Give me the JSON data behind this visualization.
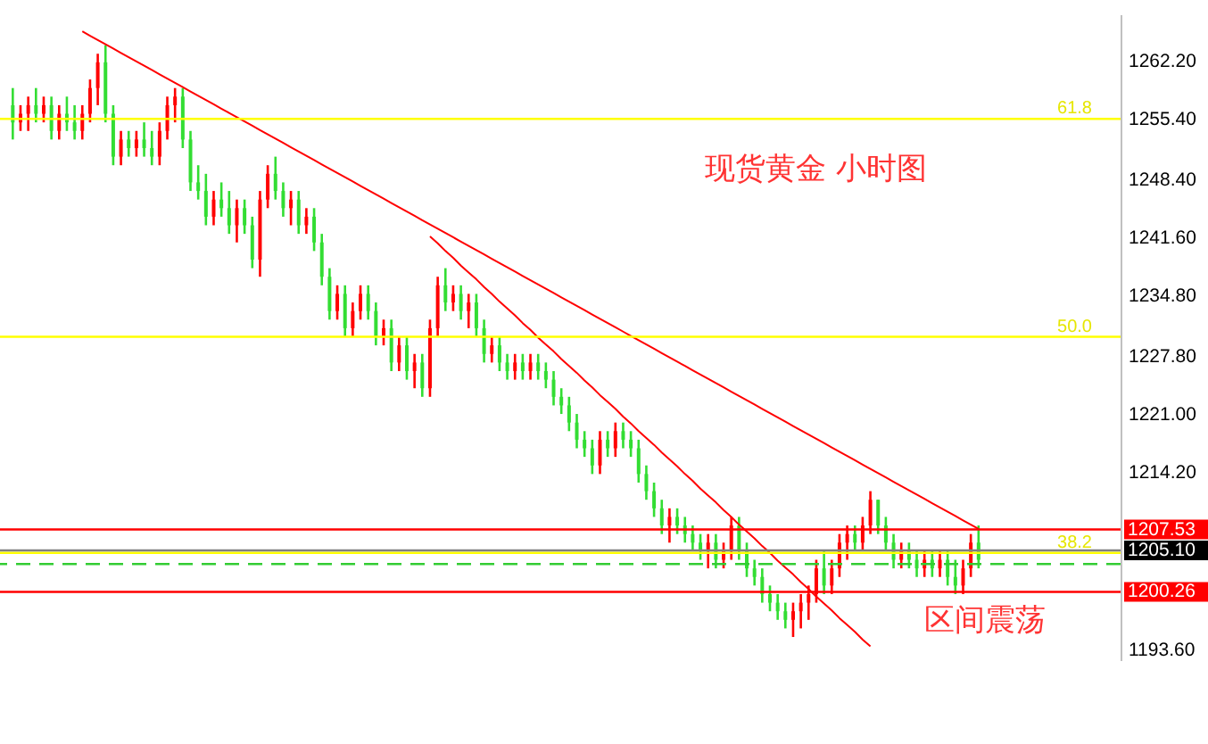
{
  "chart_data": {
    "type": "candlestick",
    "tick_labels": "y",
    "grid": false,
    "annotations": [
      "现货黄金 小时图",
      "区间震荡",
      {
        "text": "61.8",
        "y": 1255.4
      },
      {
        "text": "50.0",
        "y": 1230
      },
      {
        "text": "38.2",
        "y": 1204.8
      }
    ],
    "ylim": [
      1192.3,
      1267.6
    ],
    "yticks": [
      {
        "value": 1262.2,
        "label": "1262.20"
      },
      {
        "value": 1255.4,
        "label": "1255.40"
      },
      {
        "value": 1248.4,
        "label": "1248.40"
      },
      {
        "value": 1241.6,
        "label": "1241.60"
      },
      {
        "value": 1234.8,
        "label": "1234.80"
      },
      {
        "value": 1227.8,
        "label": "1227.80"
      },
      {
        "value": 1221,
        "label": "1221.00"
      },
      {
        "value": 1214.2,
        "label": "1214.20"
      },
      {
        "value": 1193.6,
        "label": "1193.60"
      }
    ],
    "categories": [
      null,
      null,
      null,
      null,
      null,
      null,
      null,
      null,
      null,
      null,
      null,
      null,
      null,
      null,
      null,
      null,
      null,
      null,
      null,
      null,
      null,
      null,
      null,
      null,
      null,
      null,
      null,
      null,
      null,
      null,
      null,
      null,
      null,
      null,
      null,
      null,
      null,
      null,
      null,
      null,
      null,
      null,
      null,
      null,
      null,
      null,
      null,
      null,
      null,
      null,
      null,
      null,
      null,
      null,
      null,
      null,
      null,
      null,
      null,
      null,
      null,
      null,
      null,
      null,
      null,
      null,
      null,
      null,
      null,
      null,
      null,
      null,
      null,
      null,
      null,
      null,
      null,
      null,
      null,
      null,
      null,
      null,
      null,
      null,
      null,
      null,
      null,
      null,
      null,
      null,
      null,
      null,
      null,
      null,
      null,
      null,
      null,
      null,
      null,
      null,
      null,
      null,
      null,
      null,
      null,
      null,
      null,
      null,
      null,
      null,
      null,
      null,
      null,
      null,
      null,
      null,
      null,
      null,
      null,
      null,
      null,
      null,
      null,
      null,
      null,
      null
    ],
    "ohlc": [
      [
        1257,
        1259,
        1253,
        1255
      ],
      [
        1255,
        1257,
        1254,
        1256
      ],
      [
        1256,
        1258,
        1254,
        1257
      ],
      [
        1257,
        1259,
        1255,
        1256
      ],
      [
        1256,
        1258,
        1255,
        1257
      ],
      [
        1257,
        1258,
        1253,
        1254
      ],
      [
        1254,
        1257,
        1253,
        1256
      ],
      [
        1256,
        1258,
        1254,
        1255
      ],
      [
        1255,
        1257,
        1253,
        1254
      ],
      [
        1254,
        1257,
        1253,
        1256
      ],
      [
        1256,
        1260,
        1255,
        1259
      ],
      [
        1259,
        1263,
        1257,
        1262
      ],
      [
        1262,
        1264,
        1255,
        1256
      ],
      [
        1256,
        1257,
        1250,
        1251
      ],
      [
        1251,
        1254,
        1250,
        1253
      ],
      [
        1253,
        1254,
        1251,
        1252
      ],
      [
        1252,
        1254,
        1251,
        1253
      ],
      [
        1253,
        1255,
        1251,
        1252
      ],
      [
        1252,
        1254,
        1250,
        1251
      ],
      [
        1251,
        1255,
        1250,
        1254
      ],
      [
        1254,
        1258,
        1253,
        1257
      ],
      [
        1257,
        1259,
        1255,
        1258
      ],
      [
        1258,
        1259,
        1252,
        1253
      ],
      [
        1253,
        1254,
        1247,
        1248
      ],
      [
        1248,
        1250,
        1246,
        1247
      ],
      [
        1247,
        1249,
        1243,
        1244
      ],
      [
        1244,
        1247,
        1243,
        1246
      ],
      [
        1246,
        1248,
        1244,
        1245
      ],
      [
        1245,
        1247,
        1242,
        1243
      ],
      [
        1243,
        1246,
        1241,
        1245
      ],
      [
        1245,
        1246,
        1242,
        1243
      ],
      [
        1243,
        1244,
        1238,
        1239
      ],
      [
        1239,
        1247,
        1237,
        1246
      ],
      [
        1246,
        1250,
        1245,
        1249
      ],
      [
        1249,
        1251,
        1246,
        1247
      ],
      [
        1247,
        1248,
        1244,
        1245
      ],
      [
        1245,
        1247,
        1243,
        1246
      ],
      [
        1246,
        1247,
        1242,
        1243
      ],
      [
        1243,
        1245,
        1242,
        1244
      ],
      [
        1244,
        1245,
        1240,
        1241
      ],
      [
        1241,
        1242,
        1236,
        1237
      ],
      [
        1237,
        1238,
        1232,
        1233
      ],
      [
        1233,
        1236,
        1232,
        1235
      ],
      [
        1235,
        1236,
        1230,
        1231
      ],
      [
        1231,
        1234,
        1230,
        1233
      ],
      [
        1233,
        1236,
        1232,
        1235
      ],
      [
        1235,
        1236,
        1232,
        1233
      ],
      [
        1233,
        1234,
        1229,
        1230
      ],
      [
        1230,
        1232,
        1229,
        1231
      ],
      [
        1231,
        1232,
        1226,
        1227
      ],
      [
        1227,
        1230,
        1226,
        1229
      ],
      [
        1229,
        1230,
        1225,
        1226
      ],
      [
        1226,
        1228,
        1224,
        1227
      ],
      [
        1227,
        1228,
        1223,
        1224
      ],
      [
        1224,
        1232,
        1223,
        1231
      ],
      [
        1231,
        1237,
        1230,
        1236
      ],
      [
        1236,
        1238,
        1233,
        1234
      ],
      [
        1234,
        1236,
        1233,
        1235
      ],
      [
        1235,
        1236,
        1232,
        1233
      ],
      [
        1233,
        1235,
        1231,
        1234
      ],
      [
        1234,
        1235,
        1230,
        1231
      ],
      [
        1231,
        1232,
        1227,
        1228
      ],
      [
        1228,
        1230,
        1227,
        1229
      ],
      [
        1229,
        1230,
        1226,
        1227
      ],
      [
        1227,
        1228,
        1225,
        1226
      ],
      [
        1226,
        1228,
        1225,
        1227
      ],
      [
        1227,
        1228,
        1225,
        1226
      ],
      [
        1226,
        1228,
        1225,
        1227
      ],
      [
        1227,
        1228,
        1225,
        1226
      ],
      [
        1226,
        1227,
        1224,
        1225
      ],
      [
        1225,
        1226,
        1222,
        1223
      ],
      [
        1223,
        1224,
        1221,
        1222
      ],
      [
        1222,
        1223,
        1219,
        1220
      ],
      [
        1220,
        1221,
        1217,
        1218
      ],
      [
        1218,
        1219,
        1216,
        1217
      ],
      [
        1217,
        1218,
        1214,
        1215
      ],
      [
        1215,
        1219,
        1214,
        1218
      ],
      [
        1218,
        1219,
        1216,
        1217
      ],
      [
        1217,
        1220,
        1216,
        1219
      ],
      [
        1219,
        1220,
        1217,
        1218
      ],
      [
        1218,
        1219,
        1216,
        1217
      ],
      [
        1217,
        1218,
        1213,
        1214
      ],
      [
        1214,
        1215,
        1211,
        1212
      ],
      [
        1212,
        1213,
        1209,
        1210
      ],
      [
        1210,
        1211,
        1207,
        1208
      ],
      [
        1208,
        1210,
        1206,
        1209
      ],
      [
        1209,
        1210,
        1207,
        1208
      ],
      [
        1208,
        1209,
        1206,
        1207
      ],
      [
        1207,
        1208,
        1205,
        1206
      ],
      [
        1206,
        1207,
        1204,
        1205
      ],
      [
        1205,
        1207,
        1203,
        1206
      ],
      [
        1206,
        1207,
        1203,
        1204
      ],
      [
        1204,
        1206,
        1203,
        1205
      ],
      [
        1205,
        1209,
        1204,
        1208
      ],
      [
        1208,
        1209,
        1204,
        1205
      ],
      [
        1205,
        1206,
        1202,
        1203
      ],
      [
        1203,
        1204,
        1201,
        1202
      ],
      [
        1202,
        1203,
        1199,
        1200
      ],
      [
        1200,
        1201,
        1198,
        1199
      ],
      [
        1199,
        1200,
        1197,
        1198
      ],
      [
        1198,
        1199,
        1196,
        1197
      ],
      [
        1197,
        1199,
        1195,
        1198
      ],
      [
        1198,
        1200,
        1196,
        1199
      ],
      [
        1199,
        1201,
        1197,
        1200
      ],
      [
        1200,
        1204,
        1199,
        1203
      ],
      [
        1203,
        1205,
        1200,
        1201
      ],
      [
        1201,
        1204,
        1200,
        1203
      ],
      [
        1203,
        1207,
        1202,
        1206
      ],
      [
        1206,
        1208,
        1204,
        1207
      ],
      [
        1207,
        1208,
        1205,
        1206
      ],
      [
        1206,
        1209,
        1205,
        1208
      ],
      [
        1208,
        1212,
        1207,
        1211
      ],
      [
        1211,
        1211,
        1207,
        1208
      ],
      [
        1208,
        1209,
        1205,
        1206
      ],
      [
        1206,
        1207,
        1203,
        1204
      ],
      [
        1204,
        1206,
        1203,
        1205
      ],
      [
        1205,
        1206,
        1203,
        1204
      ],
      [
        1204,
        1205,
        1202,
        1203
      ],
      [
        1203,
        1205,
        1202,
        1204
      ],
      [
        1204,
        1205,
        1202,
        1203
      ],
      [
        1203,
        1205,
        1202,
        1204
      ],
      [
        1204,
        1205,
        1201,
        1202
      ],
      [
        1202,
        1204,
        1200,
        1201
      ],
      [
        1201,
        1204,
        1200,
        1203
      ],
      [
        1203,
        1207,
        1202,
        1206
      ],
      [
        1206,
        1208,
        1203,
        1204
      ]
    ],
    "series": [
      {
        "type": "line",
        "color": "#ff0000",
        "values": [
          null,
          null,
          null,
          null,
          null,
          null,
          null,
          null,
          null,
          1265.6,
          1265.1,
          1264.6,
          1264.1,
          1263.6,
          1263.1,
          1262.6,
          1262.1,
          1261.6,
          1261.1,
          1260.6,
          1260.1,
          1259.6,
          1259.1,
          1258.6,
          1258.1,
          1257.6,
          1257.1,
          1256.6,
          1256.1,
          1255.6,
          1255.1,
          1254.6,
          1254.1,
          1253.6,
          1253.1,
          1252.6,
          1252.1,
          1251.6,
          1251.1,
          1250.6,
          1250.1,
          1249.6,
          1249.1,
          1248.6,
          1248.1,
          1247.6,
          1247.1,
          1246.6,
          1246.1,
          1245.6,
          1245.1,
          1244.6,
          1244.1,
          1243.6,
          1243.1,
          1242.6,
          1242.1,
          1241.6,
          1241.1,
          1240.6,
          1240.1,
          1239.6,
          1239.1,
          1238.6,
          1238.1,
          1237.6,
          1237.1,
          1236.6,
          1236.1,
          1235.6,
          1235.1,
          1234.6,
          1234.1,
          1233.6,
          1233.1,
          1232.6,
          1232.1,
          1231.6,
          1231.1,
          1230.6,
          1230.1,
          1229.6,
          1229.1,
          1228.6,
          1228.1,
          1227.6,
          1227.1,
          1226.6,
          1226.1,
          1225.6,
          1225.1,
          1224.6,
          1224.1,
          1223.6,
          1223.1,
          1222.6,
          1222.1,
          1221.6,
          1221.1,
          1220.6,
          1220.1,
          1219.6,
          1219.1,
          1218.6,
          1218.1,
          1217.6,
          1217.1,
          1216.6,
          1216.1,
          1215.6,
          1215.1,
          1214.6,
          1214.1,
          1213.6,
          1213.1,
          1212.6,
          1212.1,
          1211.6,
          1211.1,
          1210.6,
          1210.1,
          1209.6,
          1209.1,
          1208.6,
          1208.1,
          1207.6
        ]
      },
      {
        "type": "line",
        "color": "#ff0000",
        "values": [
          null,
          null,
          null,
          null,
          null,
          null,
          null,
          null,
          null,
          null,
          null,
          null,
          null,
          null,
          null,
          null,
          null,
          null,
          null,
          null,
          null,
          null,
          null,
          null,
          null,
          null,
          null,
          null,
          null,
          null,
          null,
          null,
          null,
          null,
          null,
          null,
          null,
          null,
          null,
          null,
          null,
          null,
          null,
          null,
          null,
          null,
          null,
          null,
          null,
          null,
          null,
          null,
          null,
          null,
          1241.7,
          1240.9,
          1240.0,
          1239.2,
          1238.3,
          1237.5,
          1236.7,
          1235.8,
          1235.0,
          1234.1,
          1233.3,
          1232.5,
          1231.6,
          1230.8,
          1229.9,
          1229.1,
          1228.3,
          1227.4,
          1226.6,
          1225.8,
          1224.9,
          1224.1,
          1223.2,
          1222.4,
          1221.6,
          1220.7,
          1219.9,
          1219.0,
          1218.2,
          1217.4,
          1216.5,
          1215.7,
          1214.9,
          1214.0,
          1213.2,
          1212.3,
          1211.5,
          1210.7,
          1209.8,
          1209.0,
          1208.1,
          1207.3,
          1206.5,
          1205.6,
          1204.8,
          1203.9,
          1203.1,
          1202.3,
          1201.4,
          1200.6,
          1199.7,
          1198.9,
          1198.1,
          1197.2,
          1196.4,
          1195.6,
          1194.7,
          1193.9,
          null,
          null,
          null,
          null,
          null,
          null,
          null,
          null,
          null,
          null,
          null,
          null,
          null,
          null
        ]
      }
    ],
    "ref_lines": [
      {
        "axis": "y",
        "value": 1255.4,
        "color": "#ffff00"
      },
      {
        "axis": "y",
        "value": 1230,
        "color": "#ffff00"
      },
      {
        "axis": "y",
        "value": 1204.8,
        "color": "#ffff00"
      },
      {
        "axis": "y",
        "value": 1207.53,
        "label": "1207.53",
        "color": "#ff0000"
      },
      {
        "axis": "y",
        "value": 1205.1,
        "label": "1205.10",
        "color": "#808080"
      },
      {
        "axis": "y",
        "value": 1203.5,
        "label": null,
        "color": "#33cc33",
        "line_style": "dashed"
      },
      {
        "axis": "y",
        "value": 1200.26,
        "label": "1200.26",
        "color": "#ff0000"
      }
    ]
  }
}
